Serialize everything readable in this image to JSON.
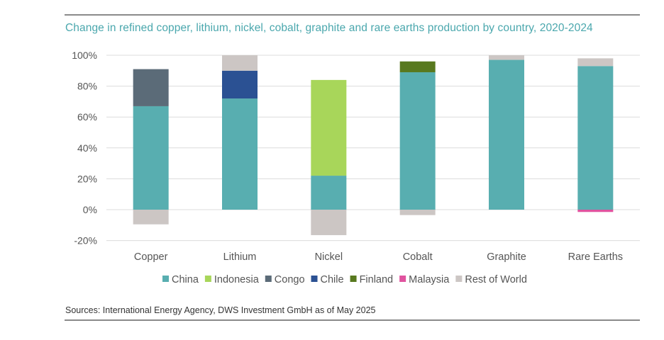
{
  "title": "Change in refined copper, lithium, nickel, cobalt, graphite and rare earths production by country, 2020-2024",
  "source": "Sources: International Energy Agency, DWS Investment GmbH as of May 2025",
  "colors": {
    "China": "#58aeb0",
    "Indonesia": "#a8d65a",
    "Congo": "#5b6b78",
    "Chile": "#2b5193",
    "Finland": "#58791f",
    "Malaysia": "#e0539f",
    "Rest of World": "#ccc6c4",
    "grid": "#dcdcdc"
  },
  "chart_data": {
    "type": "bar",
    "stacked": true,
    "title": "Change in refined copper, lithium, nickel, cobalt, graphite and rare earths production by country, 2020-2024",
    "categories": [
      "Copper",
      "Lithium",
      "Nickel",
      "Cobalt",
      "Graphite",
      "Rare Earths"
    ],
    "ylim": [
      -20,
      100
    ],
    "yticks": [
      -20,
      0,
      20,
      40,
      60,
      80,
      100
    ],
    "ytick_labels": [
      "-20%",
      "0%",
      "20%",
      "40%",
      "60%",
      "80%",
      "100%"
    ],
    "grid": true,
    "legend_position": "bottom",
    "series": [
      {
        "name": "China",
        "values": [
          67,
          72,
          22,
          89,
          97,
          93
        ]
      },
      {
        "name": "Indonesia",
        "values": [
          0,
          0,
          62,
          0,
          0,
          0
        ]
      },
      {
        "name": "Congo",
        "values": [
          24,
          0,
          0,
          0,
          0,
          0
        ]
      },
      {
        "name": "Chile",
        "values": [
          0,
          18,
          0,
          0,
          0,
          0
        ]
      },
      {
        "name": "Finland",
        "values": [
          0,
          0,
          0,
          7,
          0,
          0
        ]
      },
      {
        "name": "Malaysia",
        "values": [
          0,
          0,
          0,
          0,
          0,
          -1.5
        ]
      },
      {
        "name": "Rest of World",
        "values": [
          -9.5,
          10,
          -16.5,
          -3.5,
          3,
          5
        ]
      }
    ]
  }
}
